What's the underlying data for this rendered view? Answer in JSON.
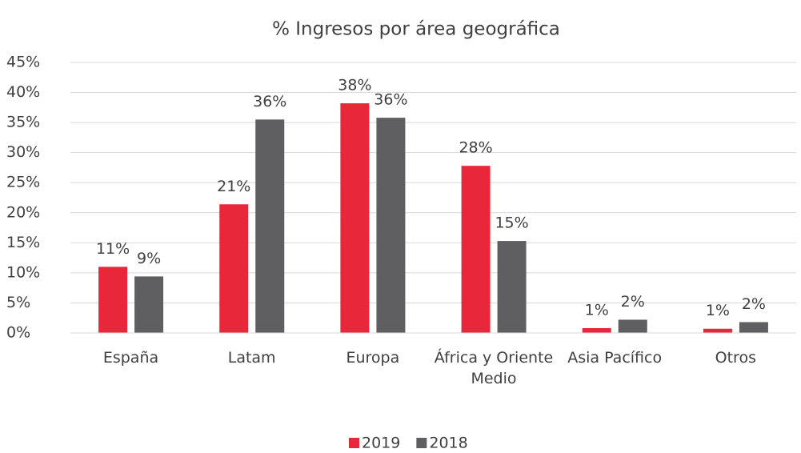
{
  "chart_data": {
    "type": "bar",
    "title": "% Ingresos por área geográfica",
    "categories": [
      "España",
      "Latam",
      "Europa",
      "África y Oriente Medio",
      "Asia Pacífico",
      "Otros"
    ],
    "series": [
      {
        "name": "2019",
        "color": "#e8283a",
        "values": [
          11,
          21.4,
          38.2,
          27.8,
          0.8,
          0.7
        ],
        "value_labels": [
          "11%",
          "21%",
          "38%",
          "28%",
          "1%",
          "1%"
        ]
      },
      {
        "name": "2018",
        "color": "#5f5f61",
        "values": [
          9.4,
          35.5,
          35.8,
          15.3,
          2.2,
          1.8
        ],
        "value_labels": [
          "9%",
          "36%",
          "36%",
          "15%",
          "2%",
          "2%"
        ]
      }
    ],
    "ylim": [
      0,
      45
    ],
    "yticks": [
      {
        "value": 0,
        "label": "0%"
      },
      {
        "value": 5,
        "label": "5%"
      },
      {
        "value": 10,
        "label": "10%"
      },
      {
        "value": 15,
        "label": "15%"
      },
      {
        "value": 20,
        "label": "20%"
      },
      {
        "value": 25,
        "label": "25%"
      },
      {
        "value": 30,
        "label": "30%"
      },
      {
        "value": 35,
        "label": "35%"
      },
      {
        "value": 40,
        "label": "40%"
      },
      {
        "value": 45,
        "label": "45%"
      }
    ],
    "grid": true,
    "legend": "bottom"
  }
}
